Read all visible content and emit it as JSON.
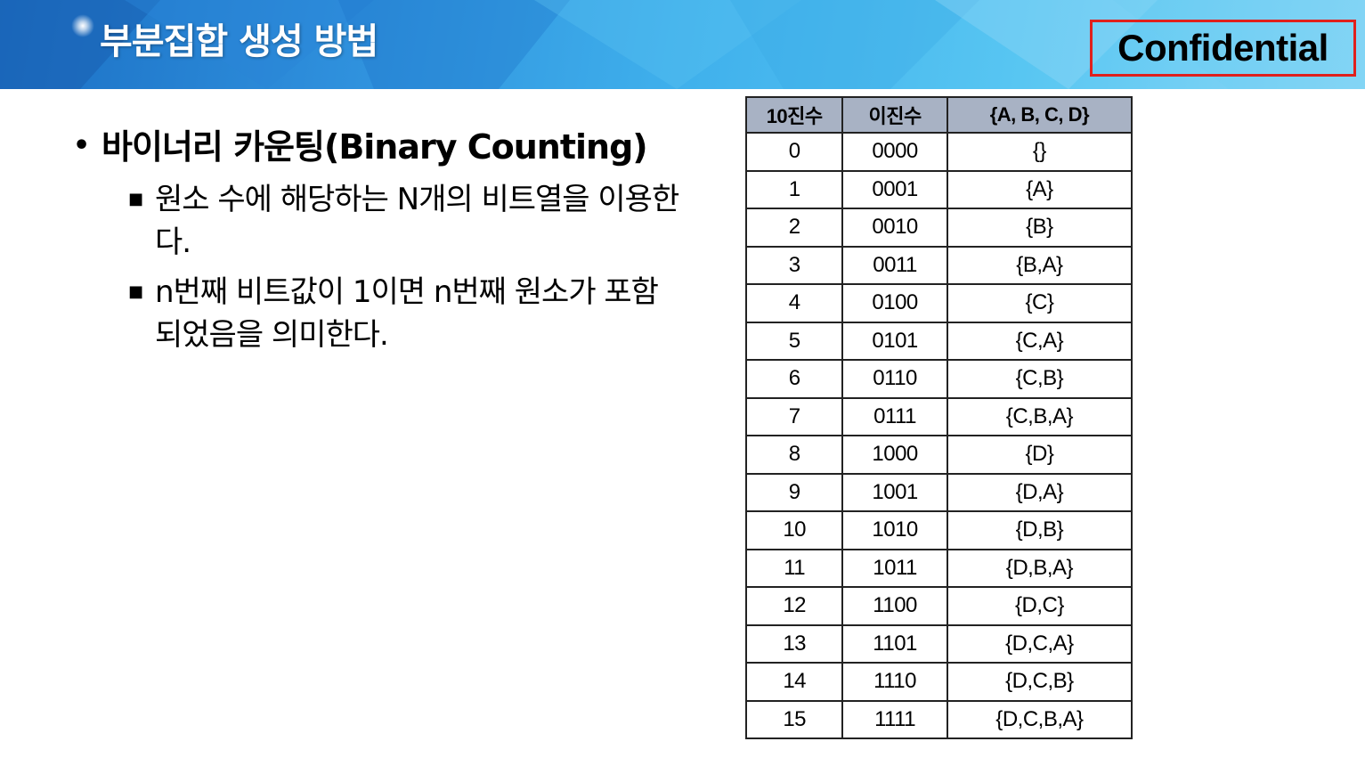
{
  "header": {
    "title": "부분집합 생성 방법",
    "badge": "Confidential"
  },
  "content": {
    "heading": "바이너리 카운팅(Binary Counting)",
    "bullets": [
      "원소 수에 해당하는 N개의 비트열을 이용한다.",
      "n번째 비트값이 1이면 n번째 원소가 포함되었음을 의미한다."
    ]
  },
  "table": {
    "headers": [
      "10진수",
      "이진수",
      "{A, B, C, D}"
    ],
    "rows": [
      [
        "0",
        "0000",
        "{}"
      ],
      [
        "1",
        "0001",
        "{A}"
      ],
      [
        "2",
        "0010",
        "{B}"
      ],
      [
        "3",
        "0011",
        "{B,A}"
      ],
      [
        "4",
        "0100",
        "{C}"
      ],
      [
        "5",
        "0101",
        "{C,A}"
      ],
      [
        "6",
        "0110",
        "{C,B}"
      ],
      [
        "7",
        "0111",
        "{C,B,A}"
      ],
      [
        "8",
        "1000",
        "{D}"
      ],
      [
        "9",
        "1001",
        "{D,A}"
      ],
      [
        "10",
        "1010",
        "{D,B}"
      ],
      [
        "11",
        "1011",
        "{D,B,A}"
      ],
      [
        "12",
        "1100",
        "{D,C}"
      ],
      [
        "13",
        "1101",
        "{D,C,A}"
      ],
      [
        "14",
        "1110",
        "{D,C,B}"
      ],
      [
        "15",
        "1111",
        "{D,C,B,A}"
      ]
    ]
  },
  "colors": {
    "header_start": "#1b6fc4",
    "header_end": "#8dd8f6",
    "badge_border": "#e0201c",
    "table_header_bg": "#a8b2c4"
  }
}
